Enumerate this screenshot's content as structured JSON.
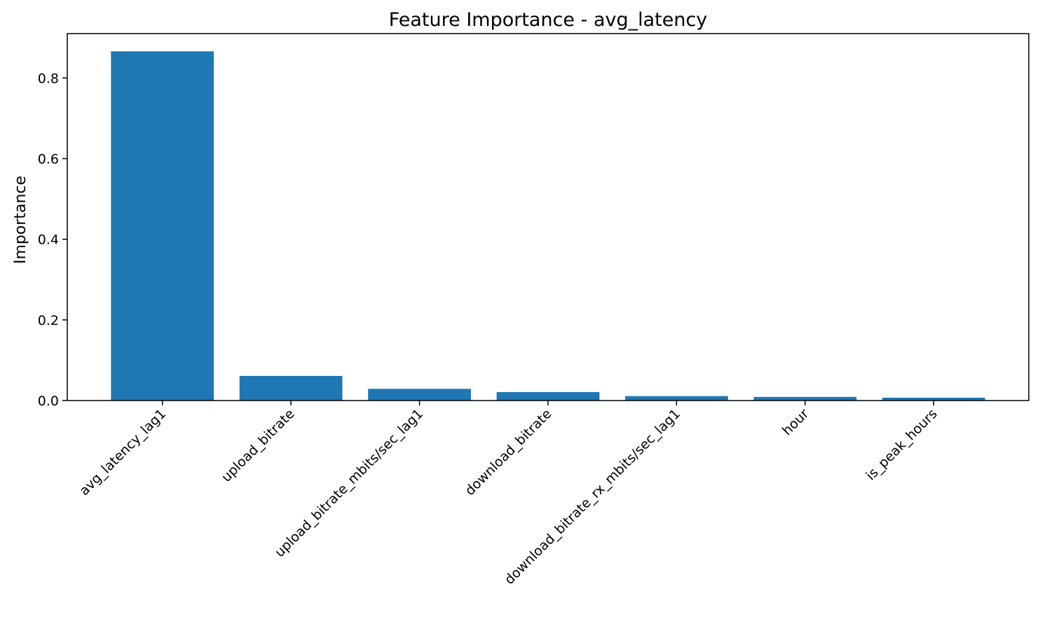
{
  "chart_data": {
    "type": "bar",
    "title": "Feature Importance - avg_latency",
    "xlabel": "",
    "ylabel": "Importance",
    "categories": [
      "avg_latency_lag1",
      "upload_bitrate",
      "upload_bitrate_mbits/sec_lag1",
      "download_bitrate",
      "download_bitrate_rx_mbits/sec_lag1",
      "hour",
      "is_peak_hours"
    ],
    "values": [
      0.866,
      0.061,
      0.029,
      0.021,
      0.011,
      0.009,
      0.007
    ],
    "ylim": [
      0,
      0.91
    ],
    "yticks": [
      0.0,
      0.2,
      0.4,
      0.6,
      0.8
    ],
    "ytick_labels": [
      "0.0",
      "0.2",
      "0.4",
      "0.6",
      "0.8"
    ],
    "bar_color": "#1f77b4",
    "grid": false,
    "legend": "none"
  }
}
